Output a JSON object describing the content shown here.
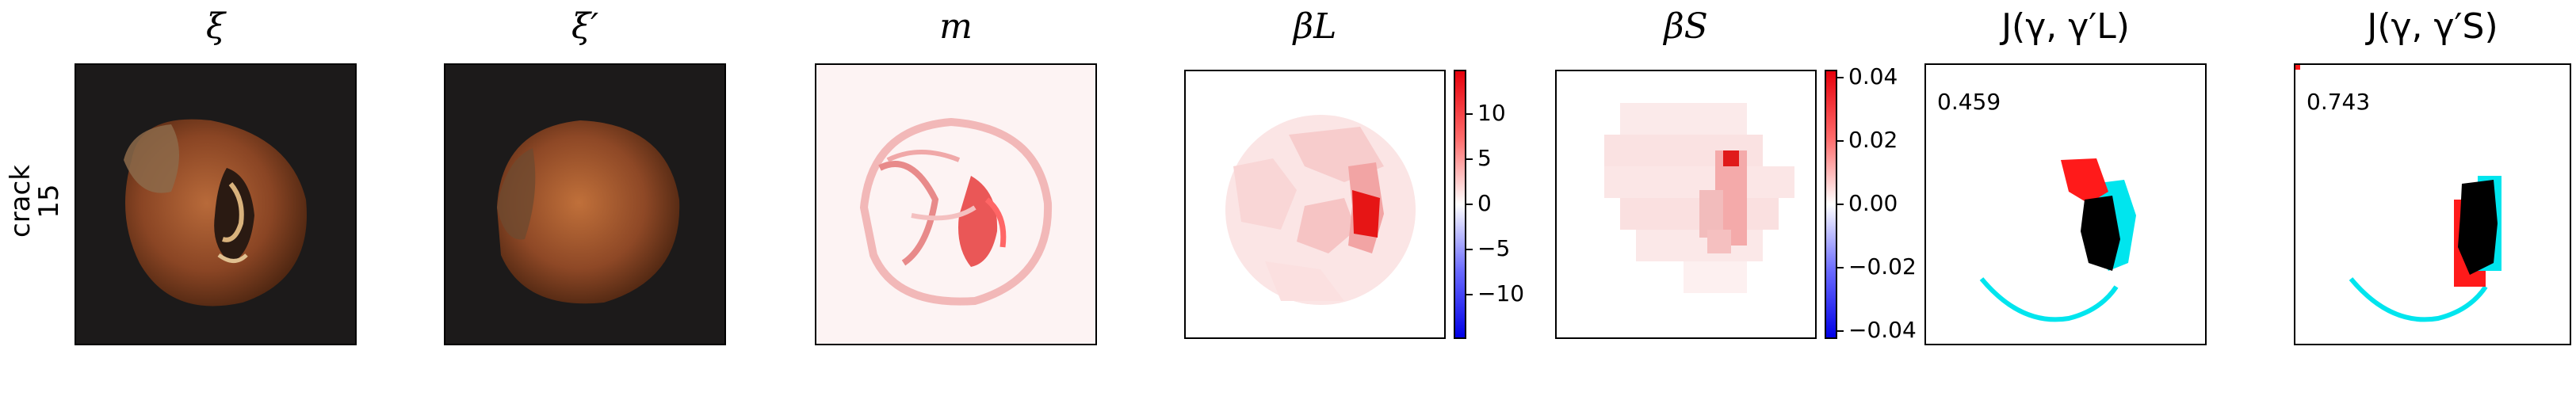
{
  "row_label": {
    "line1": "crack",
    "line2": "15"
  },
  "panels": {
    "xi": {
      "title": "ξ"
    },
    "xi_prime": {
      "title": "ξ′"
    },
    "m": {
      "title": "m"
    },
    "beta_l": {
      "title": "βL"
    },
    "beta_s": {
      "title": "βS"
    },
    "j_l": {
      "title": "J(γ, γ′L)",
      "score": "0.459"
    },
    "j_s": {
      "title": "J(γ, γ′S)",
      "score": "0.743"
    }
  },
  "colorbars": {
    "beta_l": {
      "ticks": [
        "10",
        "5",
        "0",
        "−5",
        "−10"
      ],
      "tick_values": [
        10,
        5,
        0,
        -5,
        -10
      ],
      "range": [
        -14,
        14
      ]
    },
    "beta_s": {
      "ticks": [
        "0.04",
        "0.02",
        "0.00",
        "−0.02",
        "−0.04"
      ],
      "tick_values": [
        0.04,
        0.02,
        0.0,
        -0.02,
        -0.04
      ],
      "range": [
        -0.044,
        0.044
      ]
    }
  },
  "colors": {
    "positive": "#e6000b",
    "negative": "#0000e6",
    "overlay_cyan": "#00e5ee",
    "overlay_red": "#ff1a1a",
    "overlay_black": "#000000"
  }
}
